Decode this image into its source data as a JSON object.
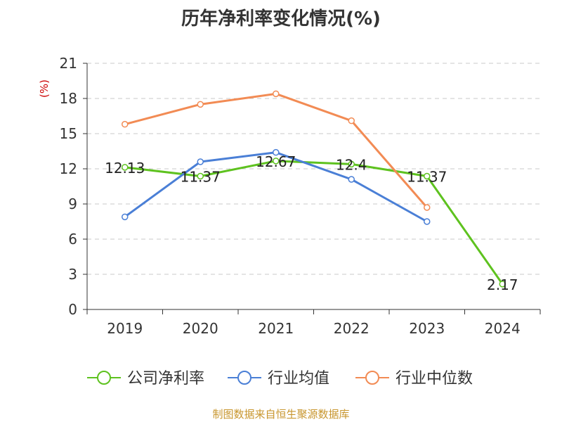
{
  "title": "历年净利率变化情况(%)",
  "footer": "制图数据来自恒生聚源数据库",
  "chart_data": {
    "type": "line",
    "title": "历年净利率变化情况(%)",
    "ylabel": "(%)",
    "xlabel": "",
    "categories": [
      "2019",
      "2020",
      "2021",
      "2022",
      "2023",
      "2024"
    ],
    "ylim": [
      0,
      21
    ],
    "yticks": [
      0,
      3,
      6,
      9,
      12,
      15,
      18,
      21
    ],
    "grid": "horizontal-dashed",
    "legend": "bottom",
    "series": [
      {
        "name": "公司净利率",
        "color": "#5ec21f",
        "values": [
          12.13,
          11.37,
          12.67,
          12.4,
          11.37,
          2.17
        ],
        "labels": [
          "12.13",
          "11.37",
          "12.67",
          "12.4",
          "11.37",
          "2.17"
        ]
      },
      {
        "name": "行业均值",
        "color": "#4a7fd6",
        "values": [
          7.9,
          12.6,
          13.4,
          11.1,
          7.5,
          null
        ]
      },
      {
        "name": "行业中位数",
        "color": "#f28b54",
        "values": [
          15.8,
          17.5,
          18.4,
          16.1,
          8.7,
          null
        ]
      }
    ]
  }
}
